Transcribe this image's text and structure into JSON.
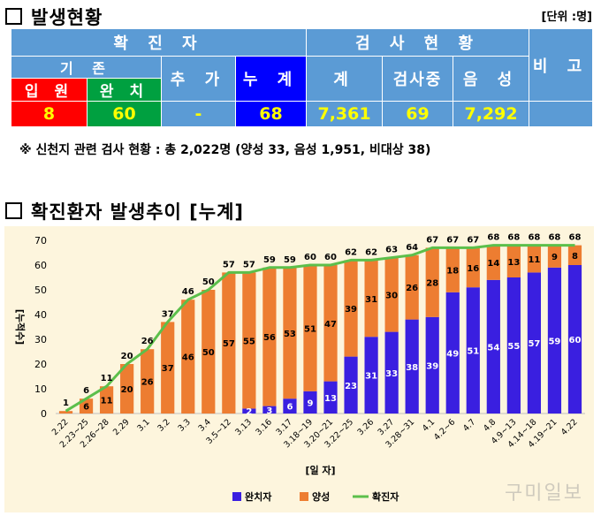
{
  "status": {
    "title": "발생현황",
    "unit": "[단위 :명]",
    "header_confirmed": "확 진 자",
    "header_test": "검 사 현 황",
    "header_remark": "비 고",
    "header_existing": "기 존",
    "header_added": "추 가",
    "header_cumulative": "누 계",
    "header_total": "계",
    "header_testing": "검사중",
    "header_negative": "음 성",
    "header_hospitalized": "입 원",
    "header_cured": "완 치",
    "val_hospitalized": "8",
    "val_cured": "60",
    "val_added": "-",
    "val_cumulative": "68",
    "val_total": "7,361",
    "val_testing": "69",
    "val_negative": "7,292",
    "colors": {
      "header_blue": "#5b9bd5",
      "red": "#ff0000",
      "green": "#00a040",
      "blue": "#0000ff",
      "value_yellow": "#ffff00"
    }
  },
  "note": "※ 신천지 관련 검사 현황 : 총 2,022명 (양성 33, 음성 1,951, 비대상 38)",
  "trend_title": "확진환자 발생추이 [누계]",
  "watermark": "구미일보",
  "chart_data": {
    "type": "bar",
    "title": "",
    "xlabel": "[일 자]",
    "ylabel": "[누적수]",
    "ylim": [
      0,
      70
    ],
    "yticks": [
      0,
      10,
      20,
      30,
      40,
      50,
      60,
      70
    ],
    "grid": false,
    "legend_position": "bottom",
    "stacked": true,
    "categories": [
      "2.22",
      "2.23~25",
      "2.26~28",
      "2.29",
      "3.1",
      "3.2",
      "3.3",
      "3.4",
      "3.5~12",
      "3.13",
      "3.16",
      "3.17",
      "3.18~19",
      "3.20~21",
      "3.22~25",
      "3.26",
      "3.27",
      "3.28~31",
      "4.1",
      "4.2~6",
      "4.7",
      "4.8",
      "4.9~13",
      "4.14~18",
      "4.19~21",
      "4.22"
    ],
    "series": [
      {
        "name": "완치자",
        "type": "bar",
        "color": "#3a1fe0",
        "values": [
          0,
          0,
          0,
          0,
          0,
          0,
          0,
          0,
          0,
          2,
          3,
          6,
          9,
          13,
          23,
          31,
          33,
          38,
          39,
          49,
          51,
          54,
          55,
          57,
          59,
          60
        ]
      },
      {
        "name": "양성",
        "type": "bar",
        "color": "#ed7d31",
        "values": [
          1,
          6,
          11,
          20,
          26,
          37,
          46,
          50,
          57,
          55,
          56,
          53,
          51,
          47,
          39,
          31,
          30,
          26,
          28,
          18,
          16,
          14,
          13,
          11,
          9,
          8
        ]
      },
      {
        "name": "확진자",
        "type": "line",
        "color": "#5cbf4b",
        "values": [
          1,
          6,
          11,
          20,
          26,
          37,
          46,
          50,
          57,
          57,
          59,
          59,
          60,
          60,
          62,
          62,
          63,
          64,
          67,
          67,
          67,
          68,
          68,
          68,
          68,
          68
        ]
      }
    ]
  }
}
